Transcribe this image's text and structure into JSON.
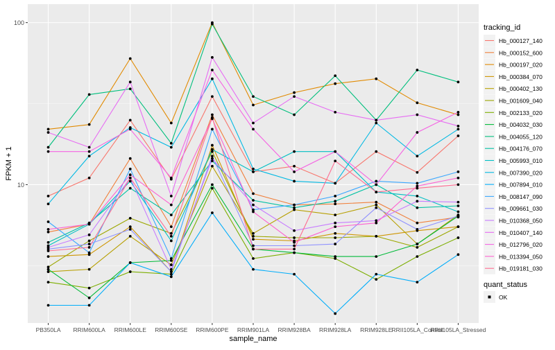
{
  "chart_data": {
    "type": "line",
    "title": "",
    "xlabel": "sample_name",
    "ylabel": "FPKM + 1",
    "y_scale": "log10",
    "ylim": [
      1.4,
      130
    ],
    "y_ticks": [
      {
        "value": 100,
        "label": "100"
      },
      {
        "value": 10,
        "label": "10"
      }
    ],
    "grid": true,
    "legend_position": "right",
    "categories": [
      "PB350LA",
      "RRIM600LA",
      "RRIM600LE",
      "RRIM600SE",
      "RRIM600PE",
      "RRIM901LA",
      "RRIM928BA",
      "RRIM928LA",
      "RRIM928LE",
      "RRII105LA_Control",
      "RRII105LA_Stressed"
    ],
    "legend_title": "tracking_id",
    "series": [
      {
        "name": "Hb_000127_140",
        "color": "#F8766D",
        "values": [
          8.5,
          11.0,
          25.0,
          10.8,
          35.0,
          12.0,
          13.0,
          10.2,
          16.0,
          11.9,
          20.0
        ]
      },
      {
        "name": "Hb_000152_600",
        "color": "#F07F3A",
        "values": [
          5.1,
          5.7,
          14.5,
          5.5,
          27.0,
          8.8,
          7.5,
          7.6,
          7.8,
          5.8,
          6.3
        ]
      },
      {
        "name": "Hb_000197_020",
        "color": "#E18A00",
        "values": [
          22.0,
          23.5,
          60.0,
          24.0,
          100.0,
          31.0,
          37.0,
          42.0,
          45.0,
          32.0,
          27.0
        ]
      },
      {
        "name": "Hb_000384_070",
        "color": "#CE9500",
        "values": [
          3.6,
          3.7,
          5.5,
          2.9,
          17.5,
          4.6,
          4.5,
          5.0,
          4.8,
          5.2,
          5.5
        ]
      },
      {
        "name": "Hb_000402_130",
        "color": "#B79F00",
        "values": [
          2.9,
          3.0,
          4.8,
          3.2,
          13.0,
          5.0,
          7.0,
          6.5,
          7.5,
          4.3,
          6.5
        ]
      },
      {
        "name": "Hb_001609_040",
        "color": "#9CA700",
        "values": [
          3.1,
          4.5,
          6.2,
          5.0,
          16.0,
          4.8,
          4.7,
          4.7,
          4.8,
          4.1,
          5.5
        ]
      },
      {
        "name": "Hb_002133_020",
        "color": "#7CAE00",
        "values": [
          2.5,
          2.3,
          2.9,
          2.8,
          9.5,
          3.5,
          3.8,
          3.5,
          2.6,
          3.6,
          4.7
        ]
      },
      {
        "name": "Hb_004032_030",
        "color": "#00BA38",
        "values": [
          3.0,
          2.0,
          3.3,
          3.4,
          10.0,
          4.0,
          3.8,
          3.6,
          3.6,
          4.3,
          6.4
        ]
      },
      {
        "name": "Hb_004055_120",
        "color": "#00BF7D",
        "values": [
          17.0,
          36.0,
          39.0,
          18.0,
          98.0,
          35.0,
          27.0,
          47.0,
          25.0,
          51.0,
          43.0
        ]
      },
      {
        "name": "Hb_004176_070",
        "color": "#00C1A3",
        "values": [
          4.4,
          5.8,
          9.5,
          6.5,
          14.0,
          8.0,
          7.2,
          7.9,
          10.0,
          7.2,
          7.4
        ]
      },
      {
        "name": "Hb_005993_010",
        "color": "#00BFC4",
        "values": [
          4.2,
          5.7,
          10.5,
          4.5,
          16.5,
          12.0,
          16.0,
          16.0,
          9.0,
          8.5,
          6.8
        ]
      },
      {
        "name": "Hb_007390_020",
        "color": "#00B9E3",
        "values": [
          7.6,
          15.0,
          22.5,
          17.0,
          45.0,
          12.5,
          10.5,
          10.2,
          24.0,
          15.0,
          22.0
        ]
      },
      {
        "name": "Hb_007894_010",
        "color": "#00ADFA",
        "values": [
          1.8,
          1.8,
          3.3,
          2.7,
          6.7,
          3.0,
          2.8,
          1.6,
          2.8,
          2.5,
          3.7
        ]
      },
      {
        "name": "Hb_008147_090",
        "color": "#39A7FF",
        "values": [
          5.9,
          3.8,
          12.5,
          3.5,
          22.0,
          7.0,
          7.5,
          8.5,
          10.5,
          10.2,
          12.0
        ]
      },
      {
        "name": "Hb_009661_030",
        "color": "#8F91FF",
        "values": [
          4.0,
          4.3,
          5.3,
          2.9,
          15.0,
          4.2,
          4.2,
          4.3,
          7.2,
          5.3,
          6.4
        ]
      },
      {
        "name": "Hb_010368_050",
        "color": "#C77CFF",
        "values": [
          4.1,
          4.9,
          11.0,
          3.0,
          14.5,
          7.5,
          5.2,
          5.8,
          6.0,
          7.9,
          7.8
        ]
      },
      {
        "name": "Hb_010407_140",
        "color": "#E76BF3",
        "values": [
          21.0,
          17.0,
          43.0,
          8.5,
          61.0,
          24.0,
          35.0,
          28.0,
          25.0,
          27.0,
          23.0
        ]
      },
      {
        "name": "Hb_012796_020",
        "color": "#F564E3",
        "values": [
          16.0,
          16.0,
          22.0,
          11.0,
          51.0,
          22.0,
          12.0,
          16.0,
          10.0,
          21.0,
          28.0
        ]
      },
      {
        "name": "Hb_013394_050",
        "color": "#FD61D1",
        "values": [
          5.3,
          5.7,
          11.5,
          7.5,
          25.5,
          6.8,
          4.4,
          5.5,
          5.8,
          9.8,
          11.0
        ]
      },
      {
        "name": "Hb_019181_030",
        "color": "#FF6C91",
        "values": [
          3.9,
          4.1,
          11.0,
          4.8,
          26.0,
          4.0,
          4.0,
          14.0,
          9.0,
          9.5,
          10.0
        ]
      }
    ],
    "shape_legend": {
      "title": "quant_status",
      "items": [
        {
          "label": "OK"
        }
      ]
    }
  }
}
